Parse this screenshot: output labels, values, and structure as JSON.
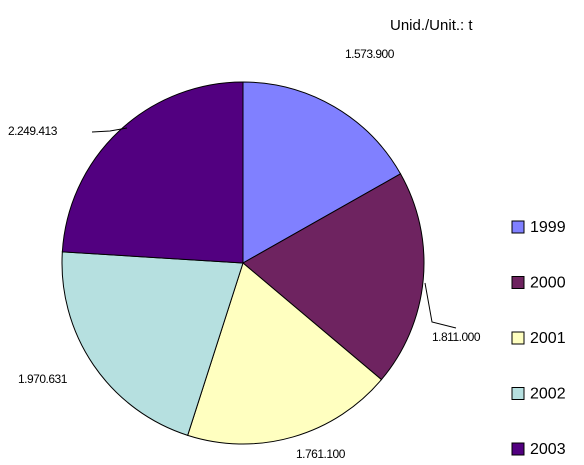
{
  "chart_data": {
    "type": "pie",
    "annotation": "Unid./Unit.: t",
    "categories": [
      "1999",
      "2000",
      "2001",
      "2002",
      "2003"
    ],
    "values": [
      1573900,
      1811000,
      1761100,
      1970631,
      2249413
    ],
    "value_labels": [
      "1.573.900",
      "1.811.000",
      "1.761.100",
      "1.970.631",
      "2.249.413"
    ],
    "colors": [
      "#8080ff",
      "#6e2360",
      "#ffffc0",
      "#b6e0e0",
      "#520080"
    ],
    "legend": "right"
  }
}
